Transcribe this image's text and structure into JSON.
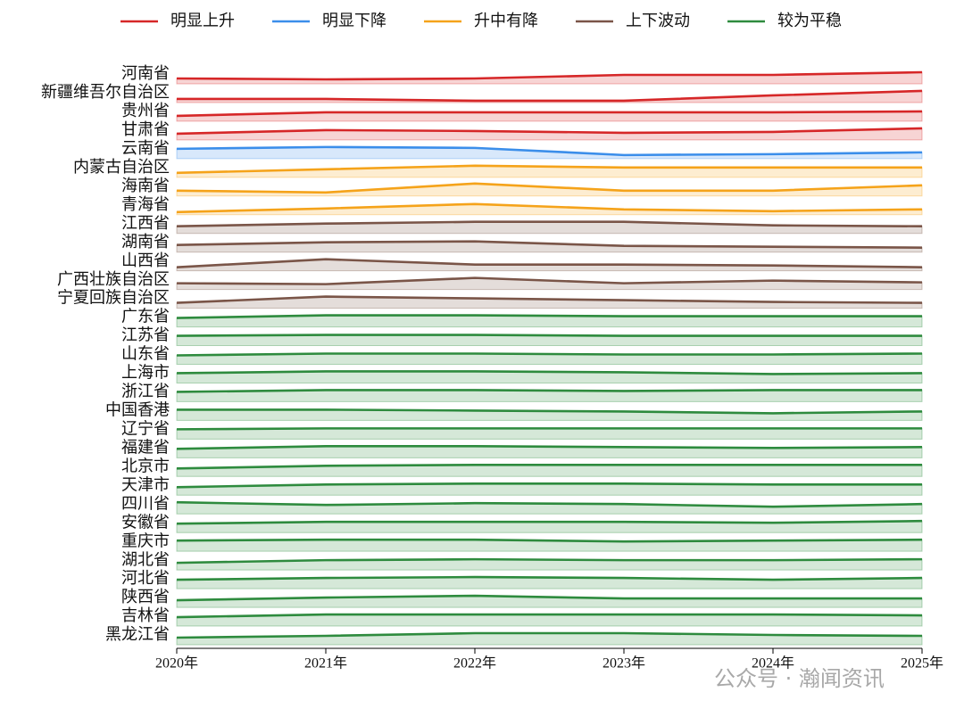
{
  "chart_data": {
    "type": "ridgeline",
    "x": [
      "2020年",
      "2021年",
      "2022年",
      "2023年",
      "2024年",
      "2025年"
    ],
    "ylim": [
      0,
      20
    ],
    "groups": [
      {
        "name": "明显上升",
        "color": "#d62728"
      },
      {
        "name": "明显下降",
        "color": "#3b8eea"
      },
      {
        "name": "升中有降",
        "color": "#f5a31a"
      },
      {
        "name": "上下波动",
        "color": "#7a5548"
      },
      {
        "name": "较为平稳",
        "color": "#2e8b3e"
      }
    ],
    "series": [
      {
        "name": "河南省",
        "group": 0,
        "values": [
          6,
          5,
          6,
          10,
          10,
          13
        ]
      },
      {
        "name": "新疆维吾尔自治区",
        "group": 0,
        "values": [
          4,
          4,
          2,
          2,
          8,
          13
        ]
      },
      {
        "name": "贵州省",
        "group": 0,
        "values": [
          6,
          10,
          10,
          10,
          10,
          11
        ]
      },
      {
        "name": "甘肃省",
        "group": 0,
        "values": [
          7,
          11,
          10,
          8,
          9,
          13
        ]
      },
      {
        "name": "云南省",
        "group": 1,
        "values": [
          11,
          13,
          12,
          4,
          5,
          7
        ]
      },
      {
        "name": "内蒙古自治区",
        "group": 2,
        "values": [
          5,
          9,
          13,
          11,
          11,
          11
        ]
      },
      {
        "name": "海南省",
        "group": 2,
        "values": [
          6,
          4,
          14,
          6,
          6,
          12
        ]
      },
      {
        "name": "青海省",
        "group": 2,
        "values": [
          3,
          7,
          12,
          6,
          4,
          6
        ]
      },
      {
        "name": "江西省",
        "group": 3,
        "values": [
          8,
          11,
          13,
          13,
          9,
          8
        ]
      },
      {
        "name": "湖南省",
        "group": 3,
        "values": [
          8,
          11,
          12,
          7,
          6,
          5
        ]
      },
      {
        "name": "山西省",
        "group": 3,
        "values": [
          4,
          13,
          7,
          7,
          6,
          4
        ]
      },
      {
        "name": "广西壮族自治区",
        "group": 3,
        "values": [
          7,
          6,
          13,
          7,
          10,
          8
        ]
      },
      {
        "name": "宁夏回族自治区",
        "group": 3,
        "values": [
          6,
          13,
          11,
          9,
          7,
          6
        ]
      },
      {
        "name": "广东省",
        "group": 4,
        "values": [
          10,
          13,
          13,
          12,
          12,
          12
        ]
      },
      {
        "name": "江苏省",
        "group": 4,
        "values": [
          11,
          12,
          12,
          11,
          11,
          11
        ]
      },
      {
        "name": "山东省",
        "group": 4,
        "values": [
          10,
          12,
          12,
          11,
          11,
          12
        ]
      },
      {
        "name": "上海市",
        "group": 4,
        "values": [
          11,
          13,
          13,
          12,
          10,
          11
        ]
      },
      {
        "name": "浙江省",
        "group": 4,
        "values": [
          11,
          13,
          13,
          12,
          13,
          13
        ]
      },
      {
        "name": "中国香港",
        "group": 4,
        "values": [
          12,
          12,
          11,
          10,
          8,
          10
        ]
      },
      {
        "name": "辽宁省",
        "group": 4,
        "values": [
          11,
          12,
          12,
          12,
          12,
          12
        ]
      },
      {
        "name": "福建省",
        "group": 4,
        "values": [
          10,
          13,
          13,
          12,
          11,
          12
        ]
      },
      {
        "name": "北京市",
        "group": 4,
        "values": [
          9,
          12,
          13,
          13,
          13,
          13
        ]
      },
      {
        "name": "天津市",
        "group": 4,
        "values": [
          9,
          12,
          13,
          13,
          12,
          12
        ]
      },
      {
        "name": "四川省",
        "group": 4,
        "values": [
          13,
          10,
          12,
          11,
          8,
          11
        ]
      },
      {
        "name": "安徽省",
        "group": 4,
        "values": [
          10,
          12,
          12,
          12,
          11,
          13
        ]
      },
      {
        "name": "重庆市",
        "group": 4,
        "values": [
          12,
          13,
          13,
          11,
          12,
          13
        ]
      },
      {
        "name": "湖北省",
        "group": 4,
        "values": [
          8,
          11,
          12,
          11,
          11,
          12
        ]
      },
      {
        "name": "河北省",
        "group": 4,
        "values": [
          10,
          12,
          13,
          12,
          10,
          12
        ]
      },
      {
        "name": "陕西省",
        "group": 4,
        "values": [
          8,
          11,
          13,
          10,
          10,
          10
        ]
      },
      {
        "name": "吉林省",
        "group": 4,
        "values": [
          10,
          13,
          13,
          13,
          13,
          12
        ]
      },
      {
        "name": "黑龙江省",
        "group": 4,
        "values": [
          8,
          10,
          13,
          13,
          11,
          10
        ]
      }
    ],
    "watermark": "公众号 · 瀚闻资讯"
  }
}
